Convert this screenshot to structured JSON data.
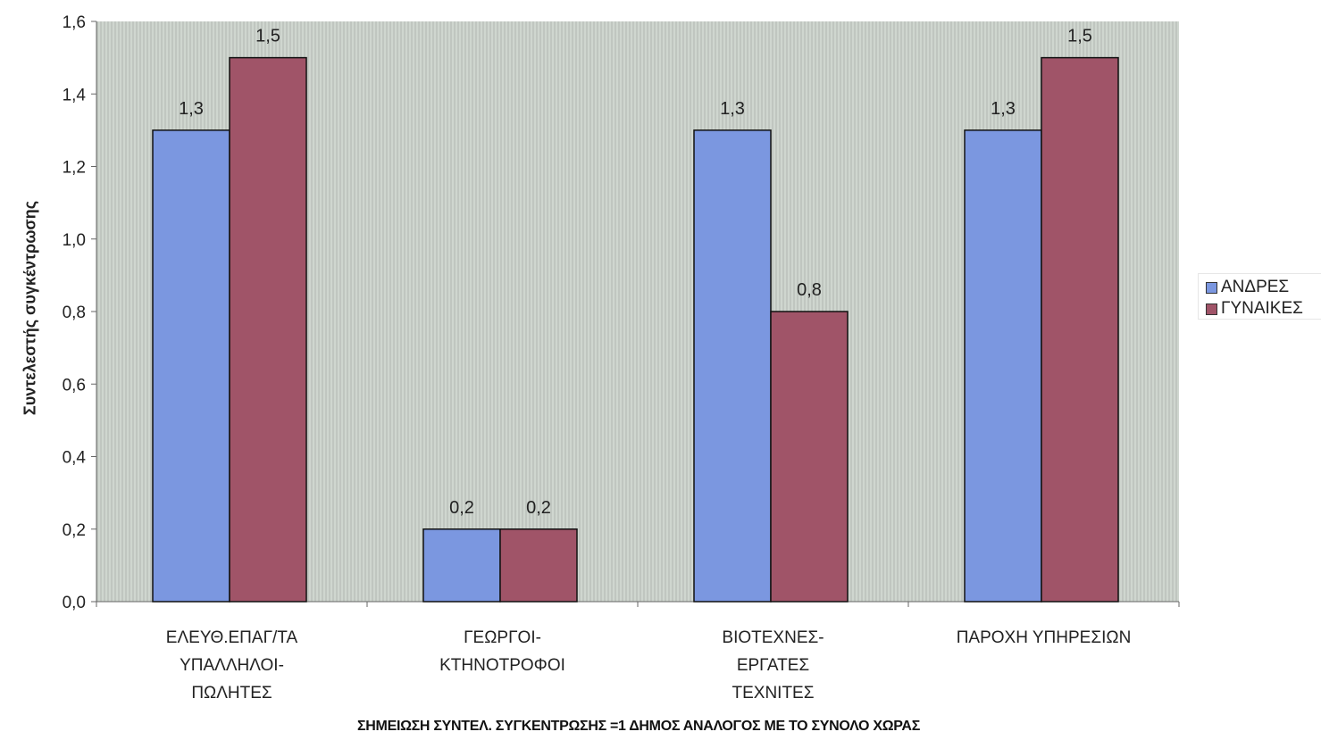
{
  "chart_data": {
    "type": "bar",
    "categories": [
      [
        "ΕΛΕΥΘ.ΕΠΑΓ/ΤΑ",
        "ΥΠΑΛΛΗΛΟΙ-",
        "ΠΩΛΗΤΕΣ"
      ],
      [
        "ΓΕΩΡΓΟΙ-",
        "ΚΤΗΝΟΤΡΟΦΟΙ"
      ],
      [
        "ΒΙΟΤΕΧΝΕΣ-",
        "ΕΡΓΑΤΕΣ",
        "ΤΕΧΝΙΤΕΣ"
      ],
      [
        "ΠΑΡΟΧΗ ΥΠΗΡΕΣΙΩΝ"
      ]
    ],
    "series": [
      {
        "name": "ΑΝΔΡΕΣ",
        "values": [
          1.3,
          0.2,
          1.3,
          1.3
        ],
        "labels": [
          "1,3",
          "0,2",
          "1,3",
          "1,3"
        ],
        "color": "#7b97e0"
      },
      {
        "name": "ΓΥΝΑΙΚΕΣ",
        "values": [
          1.5,
          0.2,
          0.8,
          1.5
        ],
        "labels": [
          "1,5",
          "0,2",
          "0,8",
          "1,5"
        ],
        "color": "#a05468"
      }
    ],
    "ylabel": "Συντελεστής συγκέντρωσης",
    "ylim": [
      0,
      1.6
    ],
    "yticks": [
      0,
      0.2,
      0.4,
      0.6,
      0.8,
      1.0,
      1.2,
      1.4,
      1.6
    ],
    "ytick_labels": [
      "0,0",
      "0,2",
      "0,4",
      "0,6",
      "0,8",
      "1,0",
      "1,2",
      "1,4",
      "1,6"
    ],
    "legend_position": "right",
    "grid": false,
    "plot_background": "#c8cfc8",
    "footnote": "ΣΗΜΕΙΩΣΗ ΣΥΝΤΕΛ. ΣΥΓΚΕΝΤΡΩΣΗΣ =1 ΔΗΜΟΣ ΑΝΑΛΟΓΟΣ ΜΕ ΤΟ ΣΥΝΟΛΟ ΧΩΡΑΣ"
  }
}
